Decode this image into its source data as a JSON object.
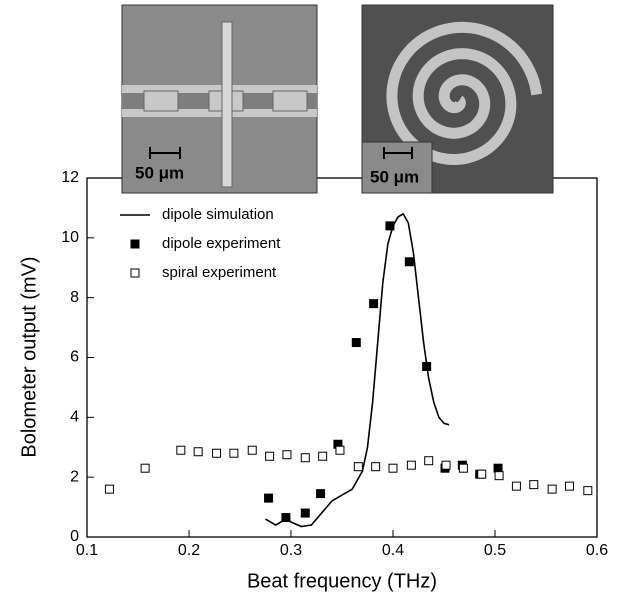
{
  "chart_data": {
    "type": "scatter",
    "xlabel": "Beat frequency (THz)",
    "ylabel": "Bolometer output (mV)",
    "xlim": [
      0.1,
      0.6
    ],
    "ylim": [
      0,
      12
    ],
    "xticks": [
      0.1,
      0.2,
      0.3,
      0.4,
      0.5,
      0.6
    ],
    "yticks": [
      0,
      2,
      4,
      6,
      8,
      10,
      12
    ],
    "legend": "upper left",
    "annotations": [
      "50 μm",
      "50 μm"
    ],
    "series": [
      {
        "name": "dipole simulation",
        "kind": "line",
        "color": "#000000",
        "x": [
          0.275,
          0.285,
          0.29,
          0.295,
          0.3,
          0.31,
          0.32,
          0.33,
          0.34,
          0.35,
          0.36,
          0.37,
          0.375,
          0.38,
          0.385,
          0.39,
          0.395,
          0.4,
          0.405,
          0.41,
          0.415,
          0.42,
          0.425,
          0.43,
          0.435,
          0.44,
          0.445,
          0.45,
          0.455
        ],
        "values": [
          0.6,
          0.4,
          0.5,
          0.65,
          0.5,
          0.35,
          0.4,
          0.8,
          1.2,
          1.4,
          1.6,
          2.2,
          3.0,
          4.5,
          6.5,
          8.5,
          9.8,
          10.4,
          10.7,
          10.8,
          10.5,
          9.5,
          8.0,
          6.5,
          5.3,
          4.5,
          4.0,
          3.8,
          3.75
        ]
      },
      {
        "name": "dipole experiment",
        "kind": "filled-square",
        "color": "#000000",
        "x": [
          0.278,
          0.295,
          0.314,
          0.329,
          0.346,
          0.364,
          0.381,
          0.397,
          0.416,
          0.433,
          0.451,
          0.468,
          0.485,
          0.503
        ],
        "values": [
          1.3,
          0.65,
          0.8,
          1.45,
          3.1,
          6.5,
          7.8,
          10.4,
          9.2,
          5.7,
          2.3,
          2.4,
          2.1,
          2.3
        ]
      },
      {
        "name": "spiral experiment",
        "kind": "open-square",
        "color": "#000000",
        "x": [
          0.122,
          0.157,
          0.192,
          0.209,
          0.227,
          0.244,
          0.262,
          0.279,
          0.296,
          0.314,
          0.331,
          0.348,
          0.366,
          0.383,
          0.4,
          0.418,
          0.435,
          0.452,
          0.469,
          0.487,
          0.504,
          0.521,
          0.538,
          0.556,
          0.573,
          0.591
        ],
        "values": [
          1.6,
          2.3,
          2.9,
          2.85,
          2.8,
          2.8,
          2.9,
          2.7,
          2.75,
          2.65,
          2.7,
          2.9,
          2.35,
          2.35,
          2.3,
          2.4,
          2.55,
          2.4,
          2.3,
          2.1,
          2.05,
          1.7,
          1.75,
          1.6,
          1.7,
          1.55
        ]
      }
    ]
  }
}
